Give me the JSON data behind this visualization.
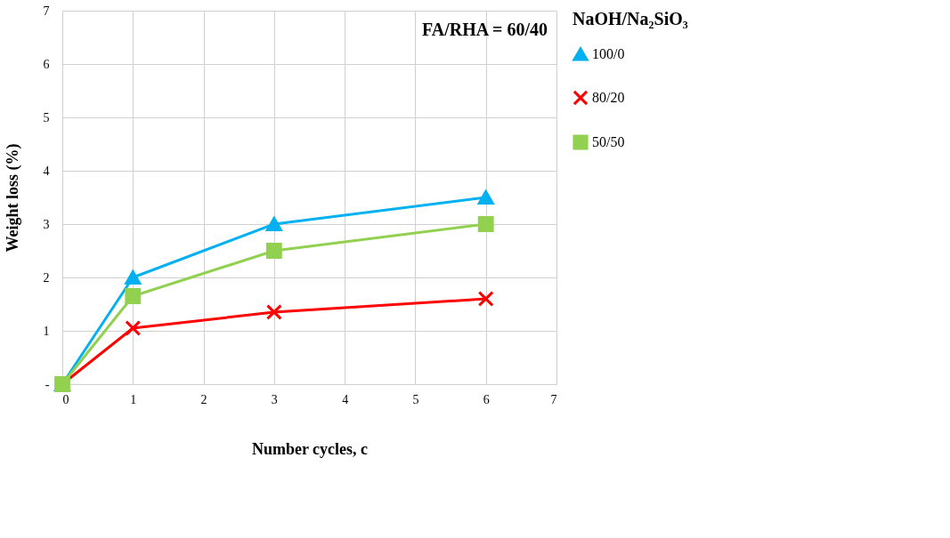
{
  "chart_data": {
    "type": "line",
    "xlabel": "Number cycles, c",
    "ylabel": "Weight loss (%)",
    "legend_title": "NaOH/Na₂SiO₃",
    "annotations": [
      "FA/RHA = 60/40"
    ],
    "x": [
      0,
      1,
      3,
      6
    ],
    "series": [
      {
        "name": "100/0",
        "color": "#00b0f0",
        "marker": "triangle",
        "values": [
          0,
          2.0,
          3.0,
          3.5
        ]
      },
      {
        "name": "80/20",
        "color": "#ff0000",
        "marker": "cross",
        "values": [
          0,
          1.05,
          1.35,
          1.6
        ]
      },
      {
        "name": "50/50",
        "color": "#92d050",
        "marker": "square",
        "values": [
          0,
          1.65,
          2.5,
          3.0
        ]
      }
    ],
    "xlim": [
      0,
      7
    ],
    "xticks": [
      0,
      1,
      2,
      3,
      4,
      5,
      6,
      7
    ],
    "ylim": [
      0,
      7
    ],
    "yticks": [
      {
        "value": 0,
        "label": "-"
      },
      1,
      2,
      3,
      4,
      5,
      6,
      7
    ],
    "grid": true,
    "legend": "right",
    "line_style": "solid"
  }
}
